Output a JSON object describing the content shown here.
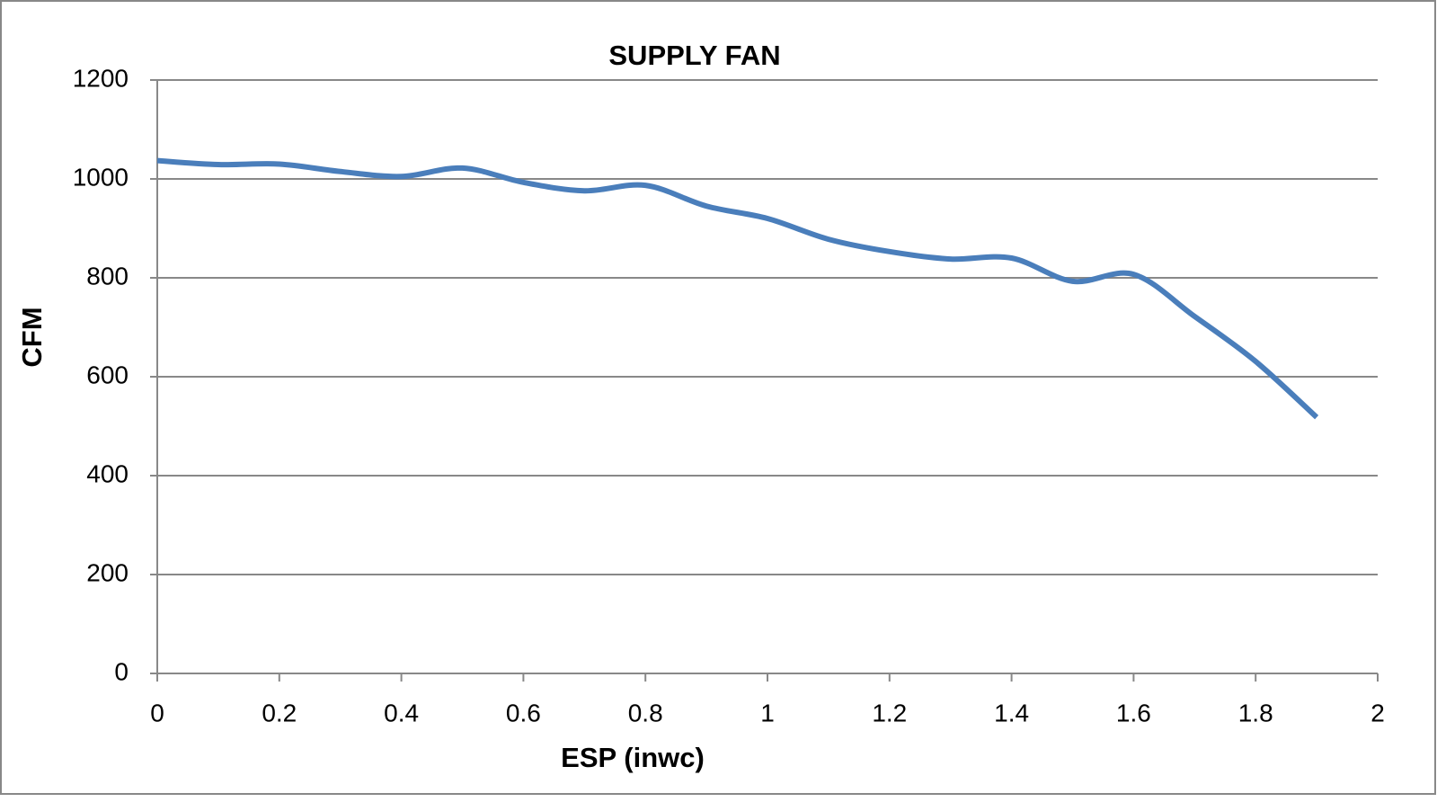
{
  "chart_data": {
    "type": "line",
    "title": "SUPPLY FAN",
    "x_label": "ESP (inwc)",
    "y_label": "CFM",
    "series": [
      {
        "name": "CFM",
        "color": "#4a7ebb",
        "x": [
          0,
          0.1,
          0.2,
          0.3,
          0.4,
          0.5,
          0.6,
          0.7,
          0.8,
          0.9,
          1.0,
          1.1,
          1.2,
          1.3,
          1.4,
          1.5,
          1.6,
          1.7,
          1.8,
          1.9
        ],
        "values": [
          1037,
          1029,
          1030,
          1015,
          1005,
          1022,
          993,
          976,
          987,
          945,
          920,
          878,
          853,
          838,
          840,
          793,
          807,
          722,
          631,
          518
        ]
      }
    ],
    "xlim": [
      0,
      2
    ],
    "xticks": [
      0,
      0.2,
      0.4,
      0.6,
      0.8,
      1,
      1.2,
      1.4,
      1.6,
      1.8,
      2
    ],
    "ylim": [
      0,
      1200
    ],
    "yticks": [
      0,
      200,
      400,
      600,
      800,
      1000,
      1200
    ],
    "grid": true
  }
}
